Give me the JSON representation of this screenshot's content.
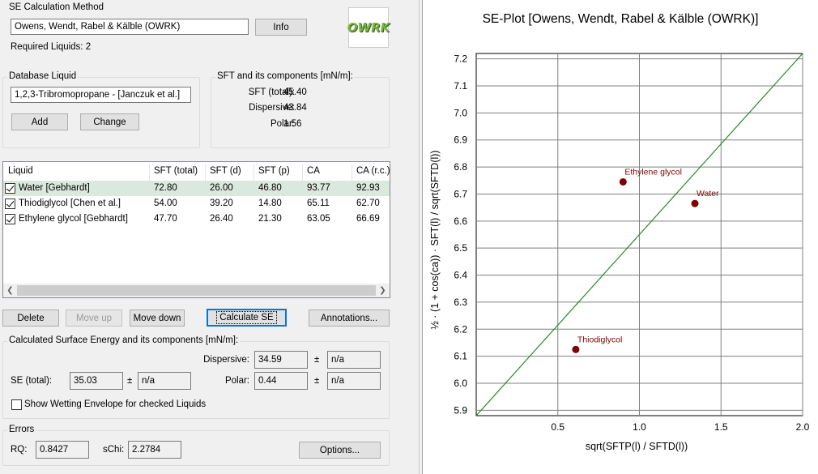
{
  "method": {
    "legend": "SE Calculation Method",
    "selected": "Owens, Wendt, Rabel & Kälble (OWRK)",
    "info_label": "Info",
    "required": "Required Liquids: 2",
    "logo_text": "OWRK"
  },
  "database": {
    "legend": "Database Liquid",
    "selected": "1,2,3-Tribromopropane - [Janczuk et al.]",
    "add_label": "Add",
    "change_label": "Change"
  },
  "sft": {
    "legend": "SFT and its components [mN/m]:",
    "rows": [
      {
        "label": "SFT (total):",
        "value": "45.40"
      },
      {
        "label": "Dispersive:",
        "value": "43.84"
      },
      {
        "label": "Polar:",
        "value": "1.56"
      }
    ]
  },
  "table": {
    "headers": [
      "Liquid",
      "SFT (total)",
      "SFT (d)",
      "SFT (p)",
      "CA",
      "CA (r.c.)"
    ],
    "rows": [
      {
        "name": "Water [Gebhardt]",
        "sft": "72.80",
        "d": "26.00",
        "p": "46.80",
        "ca": "93.77",
        "carc": "92.93"
      },
      {
        "name": "Thiodiglycol [Chen et al.]",
        "sft": "54.00",
        "d": "39.20",
        "p": "14.80",
        "ca": "65.11",
        "carc": "62.70"
      },
      {
        "name": "Ethylene glycol [Gebhardt]",
        "sft": "47.70",
        "d": "26.40",
        "p": "21.30",
        "ca": "63.05",
        "carc": "66.69"
      }
    ]
  },
  "actions": {
    "delete": "Delete",
    "move_up": "Move up",
    "move_down": "Move down",
    "calculate": "Calculate SE",
    "annotations": "Annotations..."
  },
  "result": {
    "legend": "Calculated Surface Energy and its components [mN/m]:",
    "dispersive_label": "Dispersive:",
    "dispersive_value": "34.59",
    "dispersive_err": "n/a",
    "polar_label": "Polar:",
    "polar_value": "0.44",
    "polar_err": "n/a",
    "total_label": "SE (total):",
    "total_value": "35.03",
    "total_err": "n/a",
    "pm": "±",
    "envelope_label": "Show Wetting Envelope for checked Liquids"
  },
  "errors": {
    "legend": "Errors",
    "rq_label": "RQ:",
    "rq_value": "0.8427",
    "schi_label": "sChi:",
    "schi_value": "2.2784",
    "options_label": "Options..."
  },
  "chart_data": {
    "type": "scatter",
    "title": "SE-Plot [Owens, Wendt, Rabel & Kälble (OWRK)]",
    "xlabel": "sqrt(SFTP(l) / SFTD(l))",
    "ylabel": "½ · (1 + cos(ca)) · SFT(l) / sqrt(SFTD(l))",
    "xlim": [
      0.0,
      2.0
    ],
    "ylim": [
      5.88,
      7.22
    ],
    "xticks": [
      "0.5",
      "1.0",
      "1.5",
      "2.0"
    ],
    "yticks": [
      "5.9",
      "6.0",
      "6.1",
      "6.2",
      "6.3",
      "6.4",
      "6.5",
      "6.6",
      "6.7",
      "6.8",
      "6.9",
      "7.0",
      "7.1",
      "7.2"
    ],
    "grid": true,
    "points": [
      {
        "label": "Ethylene glycol",
        "x": 0.9,
        "y": 6.745
      },
      {
        "label": "Water",
        "x": 1.34,
        "y": 6.665
      },
      {
        "label": "Thiodiglycol",
        "x": 0.61,
        "y": 6.125
      }
    ],
    "fit_line": {
      "x": [
        0.0,
        2.0
      ],
      "y": [
        5.88,
        7.22
      ]
    },
    "point_color": "#800000",
    "line_color": "#228b22"
  }
}
